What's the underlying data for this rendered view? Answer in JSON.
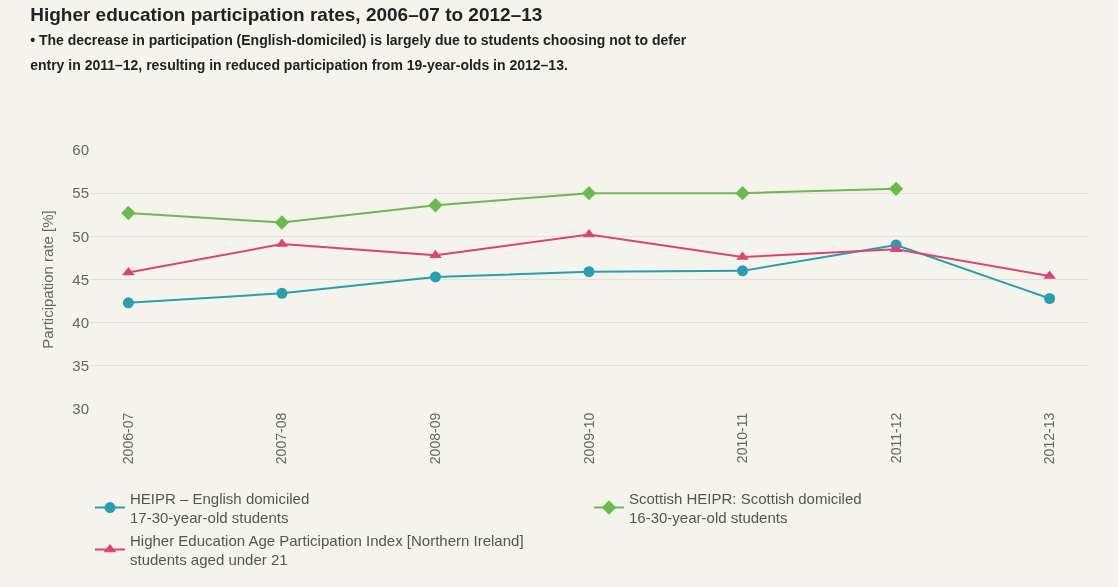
{
  "chart_data": {
    "type": "line",
    "title": "Higher education participation rates, 2006–07 to 2012–13",
    "subtitle": "• The decrease in participation (English-domiciled) is largely due to students choosing not to defer\nentry in 2011–12, resulting in reduced participation from 19-year-olds in 2012–13.",
    "ylabel": "Participation rate [%]",
    "categories": [
      "2006-07",
      "2007-08",
      "2008-09",
      "2009-10",
      "2010-11",
      "2011-12",
      "2012-13"
    ],
    "series": [
      {
        "name": "HEIPR – English domiciled\n17-30-year-old students",
        "color": "#2a9db0",
        "marker": "circle",
        "values": [
          42.3,
          43.4,
          45.3,
          45.9,
          46.0,
          49.0,
          42.8
        ]
      },
      {
        "name": "Scottish HEIPR: Scottish domiciled\n16-30-year-old students",
        "color": "#6cba4f",
        "marker": "diamond",
        "values": [
          52.7,
          51.6,
          53.6,
          55.0,
          55.0,
          55.5,
          null
        ]
      },
      {
        "name": "Higher Education Age Participation Index [Northern Ireland]\nstudents aged under 21",
        "color": "#d9466e",
        "marker": "triangle",
        "values": [
          45.8,
          49.1,
          47.8,
          50.2,
          47.6,
          48.5,
          45.4
        ]
      }
    ],
    "ylim": [
      30,
      60
    ],
    "yticks": [
      30,
      35,
      40,
      45,
      50,
      55,
      60
    ],
    "grid": "y",
    "legend": "bottom"
  }
}
